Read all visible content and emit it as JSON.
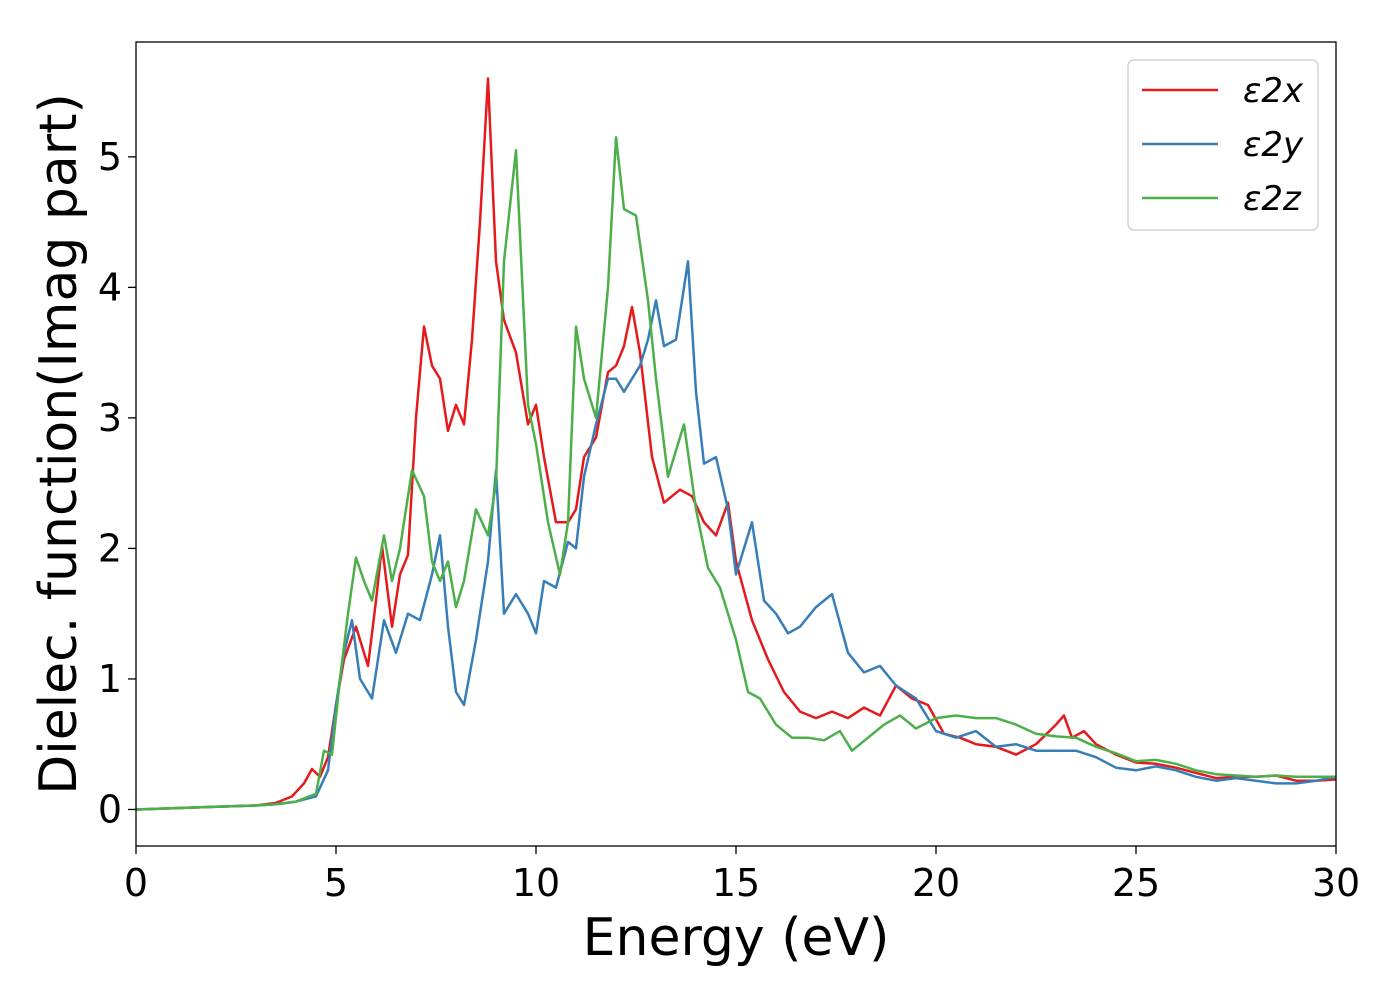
{
  "chart_data": {
    "type": "line",
    "title": "",
    "xlabel": "Energy (eV)",
    "ylabel": "Dielec. function(Imag part)",
    "xlim": [
      0,
      30
    ],
    "ylim": [
      -0.28,
      5.88
    ],
    "xticks": [
      0,
      5,
      10,
      15,
      20,
      25,
      30
    ],
    "yticks": [
      0,
      1,
      2,
      3,
      4,
      5
    ],
    "grid": false,
    "legend_position": "top-right",
    "series": [
      {
        "name": "ε2x",
        "color": "#e41a1c",
        "x": [
          0,
          1,
          2,
          3,
          3.5,
          3.9,
          4.2,
          4.4,
          4.6,
          4.8,
          5.0,
          5.2,
          5.5,
          5.8,
          6.0,
          6.15,
          6.4,
          6.6,
          6.8,
          7.0,
          7.2,
          7.4,
          7.6,
          7.8,
          8.0,
          8.2,
          8.4,
          8.6,
          8.8,
          9.0,
          9.2,
          9.5,
          9.8,
          10.0,
          10.2,
          10.5,
          10.8,
          11.0,
          11.2,
          11.5,
          11.8,
          12.0,
          12.2,
          12.4,
          12.6,
          12.9,
          13.2,
          13.6,
          13.9,
          14.2,
          14.5,
          14.8,
          15.0,
          15.4,
          15.8,
          16.2,
          16.6,
          17.0,
          17.4,
          17.8,
          18.2,
          18.6,
          19.0,
          19.4,
          19.8,
          20.2,
          20.6,
          21.0,
          21.5,
          22.0,
          22.5,
          23.0,
          23.2,
          23.4,
          23.7,
          24.0,
          24.5,
          25.0,
          25.5,
          26.0,
          26.5,
          27.0,
          27.5,
          28.0,
          28.5,
          29.0,
          29.5,
          30.0
        ],
        "y": [
          0.0,
          0.01,
          0.02,
          0.03,
          0.05,
          0.1,
          0.2,
          0.31,
          0.25,
          0.4,
          0.8,
          1.15,
          1.4,
          1.1,
          1.6,
          2.02,
          1.4,
          1.8,
          1.95,
          3.0,
          3.7,
          3.4,
          3.3,
          2.9,
          3.1,
          2.95,
          3.6,
          4.5,
          5.6,
          4.2,
          3.75,
          3.5,
          2.95,
          3.1,
          2.7,
          2.2,
          2.2,
          2.3,
          2.7,
          2.85,
          3.35,
          3.4,
          3.55,
          3.85,
          3.5,
          2.7,
          2.35,
          2.45,
          2.4,
          2.2,
          2.1,
          2.35,
          1.9,
          1.45,
          1.15,
          0.9,
          0.75,
          0.7,
          0.75,
          0.7,
          0.78,
          0.72,
          0.95,
          0.85,
          0.8,
          0.58,
          0.55,
          0.5,
          0.48,
          0.42,
          0.5,
          0.65,
          0.72,
          0.55,
          0.6,
          0.5,
          0.42,
          0.36,
          0.35,
          0.32,
          0.28,
          0.24,
          0.25,
          0.25,
          0.26,
          0.22,
          0.22,
          0.23
        ]
      },
      {
        "name": "ε2y",
        "color": "#377eb8",
        "x": [
          0,
          1,
          2,
          3,
          3.5,
          4.0,
          4.5,
          4.8,
          5.0,
          5.2,
          5.4,
          5.6,
          5.9,
          6.2,
          6.5,
          6.8,
          7.1,
          7.4,
          7.6,
          7.8,
          8.0,
          8.2,
          8.5,
          8.8,
          9.0,
          9.2,
          9.5,
          9.8,
          10.0,
          10.2,
          10.5,
          10.8,
          11.0,
          11.2,
          11.5,
          11.8,
          12.0,
          12.2,
          12.4,
          12.6,
          12.8,
          13.0,
          13.2,
          13.5,
          13.8,
          14.0,
          14.2,
          14.5,
          14.8,
          15.0,
          15.4,
          15.7,
          16.0,
          16.3,
          16.6,
          17.0,
          17.4,
          17.8,
          18.2,
          18.6,
          19.0,
          19.5,
          20.0,
          20.5,
          21.0,
          21.5,
          22.0,
          22.5,
          23.0,
          23.5,
          24.0,
          24.5,
          25.0,
          25.5,
          26.0,
          26.5,
          27.0,
          27.5,
          28.0,
          28.5,
          29.0,
          29.5,
          30.0
        ],
        "y": [
          0.0,
          0.01,
          0.02,
          0.03,
          0.04,
          0.06,
          0.1,
          0.3,
          0.8,
          1.2,
          1.45,
          1.0,
          0.85,
          1.45,
          1.2,
          1.5,
          1.45,
          1.8,
          2.1,
          1.4,
          0.9,
          0.8,
          1.3,
          1.9,
          2.6,
          1.5,
          1.65,
          1.5,
          1.35,
          1.75,
          1.7,
          2.05,
          2.0,
          2.55,
          2.95,
          3.3,
          3.3,
          3.2,
          3.3,
          3.4,
          3.6,
          3.9,
          3.55,
          3.6,
          4.2,
          3.2,
          2.65,
          2.7,
          2.3,
          1.8,
          2.2,
          1.6,
          1.5,
          1.35,
          1.4,
          1.55,
          1.65,
          1.2,
          1.05,
          1.1,
          0.95,
          0.85,
          0.6,
          0.55,
          0.6,
          0.48,
          0.5,
          0.45,
          0.45,
          0.45,
          0.4,
          0.32,
          0.3,
          0.33,
          0.3,
          0.25,
          0.22,
          0.24,
          0.22,
          0.2,
          0.2,
          0.22,
          0.25
        ]
      },
      {
        "name": "ε2z",
        "color": "#4daf4a",
        "x": [
          0,
          1,
          2,
          3,
          3.5,
          4.0,
          4.5,
          4.7,
          4.9,
          5.1,
          5.3,
          5.5,
          5.7,
          5.9,
          6.2,
          6.4,
          6.6,
          6.9,
          7.2,
          7.4,
          7.6,
          7.8,
          8.0,
          8.2,
          8.5,
          8.8,
          9.0,
          9.2,
          9.5,
          9.8,
          10.0,
          10.3,
          10.6,
          10.8,
          11.0,
          11.2,
          11.5,
          11.8,
          12.0,
          12.2,
          12.5,
          12.8,
          13.0,
          13.3,
          13.7,
          14.0,
          14.3,
          14.6,
          15.0,
          15.3,
          15.6,
          16.0,
          16.4,
          16.8,
          17.2,
          17.6,
          17.9,
          18.3,
          18.7,
          19.1,
          19.5,
          20.0,
          20.5,
          21.0,
          21.5,
          22.0,
          22.5,
          23.0,
          23.5,
          24.0,
          24.5,
          25.0,
          25.5,
          26.0,
          26.5,
          27.0,
          27.5,
          28.0,
          28.5,
          29.0,
          29.5,
          30.0
        ],
        "y": [
          0.0,
          0.01,
          0.02,
          0.03,
          0.04,
          0.06,
          0.12,
          0.45,
          0.42,
          1.0,
          1.5,
          1.93,
          1.75,
          1.6,
          2.1,
          1.75,
          2.0,
          2.6,
          2.4,
          1.9,
          1.75,
          1.9,
          1.55,
          1.75,
          2.3,
          2.1,
          2.5,
          4.2,
          5.05,
          3.1,
          2.8,
          2.2,
          1.8,
          2.2,
          3.7,
          3.3,
          3.0,
          4.0,
          5.15,
          4.6,
          4.55,
          3.9,
          3.3,
          2.55,
          2.95,
          2.3,
          1.85,
          1.7,
          1.3,
          0.9,
          0.85,
          0.65,
          0.55,
          0.55,
          0.53,
          0.6,
          0.45,
          0.55,
          0.65,
          0.72,
          0.62,
          0.7,
          0.72,
          0.7,
          0.7,
          0.65,
          0.58,
          0.56,
          0.55,
          0.48,
          0.43,
          0.37,
          0.38,
          0.35,
          0.3,
          0.27,
          0.26,
          0.25,
          0.26,
          0.25,
          0.25,
          0.25
        ]
      }
    ]
  }
}
